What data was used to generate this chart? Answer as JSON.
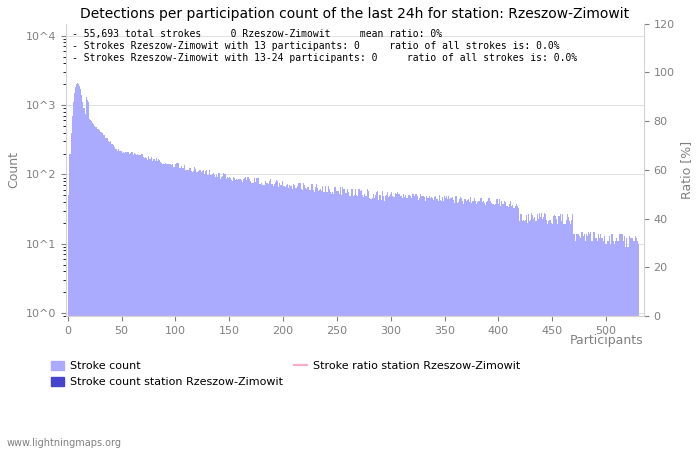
{
  "title": "Detections per participation count of the last 24h for station: Rzeszow-Zimowit",
  "info_lines": [
    "- 55,693 total strokes     0 Rzeszow-Zimowit     mean ratio: 0%",
    "- Strokes Rzeszow-Zimowit with 13 participants: 0     ratio of all strokes is: 0.0%",
    "- Strokes Rzeszow-Zimowit with 13-24 participants: 0     ratio of all strokes is: 0.0%"
  ],
  "xlabel": "Participants",
  "ylabel_left": "Count",
  "ylabel_right": "Ratio [%]",
  "xlim": [
    -2,
    535
  ],
  "ylim_right": [
    0,
    120
  ],
  "bar_color": "#aaaaff",
  "station_bar_color": "#4444cc",
  "ratio_line_color": "#ffaacc",
  "watermark": "www.lightningmaps.org",
  "legend_entries": [
    "Stroke count",
    "Stroke count station Rzeszow-Zimowit",
    "Stroke ratio station Rzeszow-Zimowit"
  ],
  "right_yticks": [
    0,
    20,
    40,
    60,
    80,
    100,
    120
  ],
  "right_yticklabels": [
    "0",
    "20",
    "40",
    "60",
    "80",
    "100",
    "120"
  ],
  "xticks": [
    0,
    50,
    100,
    150,
    200,
    250,
    300,
    350,
    400,
    450,
    500
  ],
  "n_participants": 530
}
